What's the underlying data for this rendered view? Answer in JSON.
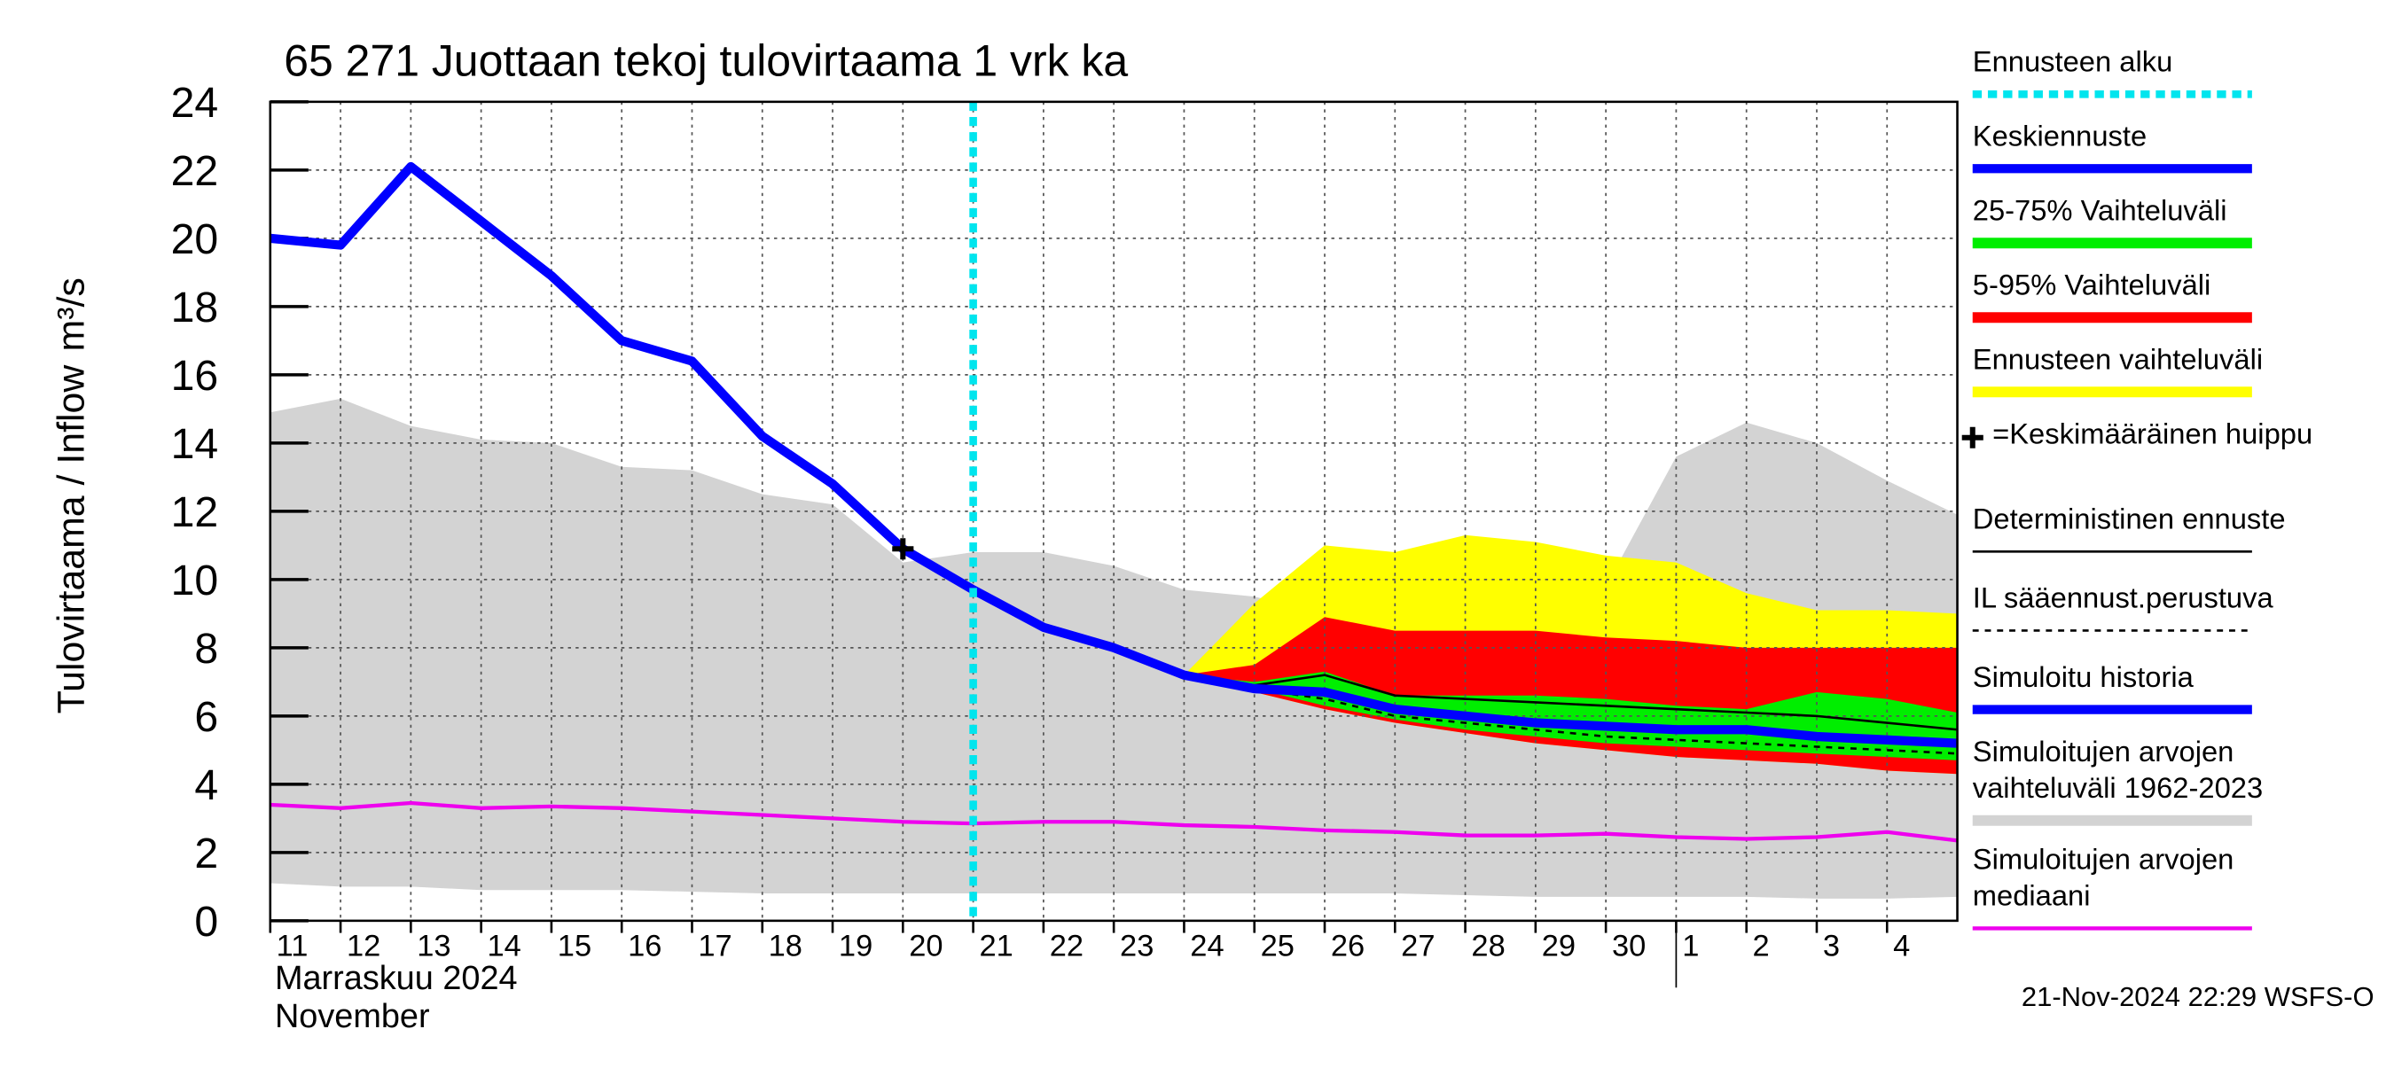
{
  "chart_data": {
    "type": "hydrograph",
    "title": "65 271 Juottaan tekoj tulovirtaama 1 vrk ka",
    "y_label": "Tulovirtaama / Inflow",
    "y_unit": "m³/s",
    "x_label": [
      "Marraskuu 2024",
      "November"
    ],
    "timestamp": "21-Nov-2024 22:29 WSFS-O",
    "xlim": [
      0,
      24
    ],
    "ylim": [
      0,
      24
    ],
    "yticks": [
      0,
      2,
      4,
      6,
      8,
      10,
      12,
      14,
      16,
      18,
      20,
      22,
      24
    ],
    "xticks": [
      {
        "value": 0,
        "label": "11"
      },
      {
        "value": 1,
        "label": "12"
      },
      {
        "value": 2,
        "label": "13"
      },
      {
        "value": 3,
        "label": "14"
      },
      {
        "value": 4,
        "label": "15"
      },
      {
        "value": 5,
        "label": "16"
      },
      {
        "value": 6,
        "label": "17"
      },
      {
        "value": 7,
        "label": "18"
      },
      {
        "value": 8,
        "label": "19"
      },
      {
        "value": 9,
        "label": "20"
      },
      {
        "value": 10,
        "label": "21"
      },
      {
        "value": 11,
        "label": "22"
      },
      {
        "value": 12,
        "label": "23"
      },
      {
        "value": 13,
        "label": "24"
      },
      {
        "value": 14,
        "label": "25"
      },
      {
        "value": 15,
        "label": "26"
      },
      {
        "value": 16,
        "label": "27"
      },
      {
        "value": 17,
        "label": "28"
      },
      {
        "value": 18,
        "label": "29"
      },
      {
        "value": 19,
        "label": "30"
      },
      {
        "value": 20,
        "label": "1"
      },
      {
        "value": 21,
        "label": "2"
      },
      {
        "value": 22,
        "label": "3"
      },
      {
        "value": 23,
        "label": "4"
      }
    ],
    "month_divider": 20,
    "grid": true,
    "x": [
      0,
      1,
      2,
      3,
      4,
      5,
      6,
      7,
      8,
      9,
      10,
      11,
      12,
      13,
      14,
      15,
      16,
      17,
      18,
      19,
      20,
      21,
      22,
      23,
      24
    ],
    "forecast_start": {
      "name": "Ennusteen alku",
      "x": 10,
      "color": "#00e5ee"
    },
    "bands": [
      {
        "name": "Simuloitujen arvojen vaihteluväli 1962-2023",
        "color": "#d3d3d3",
        "upper": [
          14.9,
          15.3,
          14.5,
          14.1,
          14.0,
          13.3,
          13.2,
          12.5,
          12.2,
          10.5,
          10.8,
          10.8,
          10.4,
          9.7,
          9.5,
          9.0,
          9.3,
          9.6,
          9.7,
          9.8,
          13.6,
          14.6,
          14.0,
          12.9,
          11.9
        ],
        "lower": [
          1.1,
          1.0,
          1.0,
          0.9,
          0.9,
          0.9,
          0.85,
          0.8,
          0.8,
          0.8,
          0.8,
          0.8,
          0.8,
          0.8,
          0.8,
          0.8,
          0.8,
          0.75,
          0.7,
          0.7,
          0.7,
          0.7,
          0.65,
          0.65,
          0.7
        ]
      },
      {
        "name": "Ennusteen vaihteluväli",
        "color": "#ffff00",
        "upper": [
          null,
          null,
          null,
          null,
          null,
          null,
          null,
          null,
          null,
          null,
          null,
          null,
          null,
          7.2,
          9.3,
          11.0,
          10.8,
          11.3,
          11.1,
          10.7,
          10.5,
          9.6,
          9.1,
          9.1,
          9.0
        ],
        "lower": [
          null,
          null,
          null,
          null,
          null,
          null,
          null,
          null,
          null,
          null,
          null,
          null,
          null,
          7.2,
          6.7,
          6.2,
          5.8,
          5.5,
          5.2,
          5.0,
          4.8,
          4.7,
          4.6,
          4.4,
          4.3
        ]
      },
      {
        "name": "5-95% Vaihteluväli",
        "color": "#ff0000",
        "upper": [
          null,
          null,
          null,
          null,
          null,
          null,
          null,
          null,
          null,
          null,
          null,
          null,
          null,
          7.2,
          7.5,
          8.9,
          8.5,
          8.5,
          8.5,
          8.3,
          8.2,
          8.0,
          8.0,
          8.0,
          8.0
        ],
        "lower": [
          null,
          null,
          null,
          null,
          null,
          null,
          null,
          null,
          null,
          null,
          null,
          null,
          null,
          7.2,
          6.7,
          6.2,
          5.8,
          5.5,
          5.2,
          5.0,
          4.8,
          4.7,
          4.6,
          4.4,
          4.3
        ]
      },
      {
        "name": "25-75% Vaihteluväli",
        "color": "#00ee00",
        "upper": [
          null,
          null,
          null,
          null,
          null,
          null,
          null,
          null,
          null,
          null,
          null,
          null,
          null,
          7.2,
          7.0,
          7.3,
          6.6,
          6.6,
          6.6,
          6.5,
          6.3,
          6.2,
          6.7,
          6.5,
          6.1
        ],
        "lower": [
          null,
          null,
          null,
          null,
          null,
          null,
          null,
          null,
          null,
          null,
          null,
          null,
          null,
          7.2,
          6.8,
          6.3,
          5.9,
          5.6,
          5.4,
          5.2,
          5.1,
          5.0,
          4.9,
          4.8,
          4.7
        ]
      }
    ],
    "series": [
      {
        "name": "Simuloitujen arvojen mediaani",
        "color": "#ee00ee",
        "width": 2.5,
        "dash": "",
        "values": [
          3.4,
          3.3,
          3.45,
          3.3,
          3.35,
          3.3,
          3.2,
          3.1,
          3.0,
          2.9,
          2.85,
          2.9,
          2.9,
          2.8,
          2.75,
          2.65,
          2.6,
          2.5,
          2.5,
          2.55,
          2.45,
          2.4,
          2.45,
          2.6,
          2.35
        ]
      },
      {
        "name": "Deterministinen ennuste",
        "color": "#000000",
        "width": 1.5,
        "dash": "",
        "values": [
          null,
          null,
          null,
          null,
          null,
          null,
          null,
          null,
          null,
          null,
          null,
          null,
          null,
          7.2,
          6.9,
          7.2,
          6.6,
          6.5,
          6.4,
          6.3,
          6.2,
          6.1,
          6.0,
          5.8,
          5.6
        ]
      },
      {
        "name": "IL sääennust.perustuva",
        "color": "#000000",
        "width": 1.5,
        "dash": "4 4",
        "values": [
          null,
          null,
          null,
          null,
          null,
          null,
          null,
          null,
          null,
          null,
          null,
          null,
          null,
          7.2,
          6.8,
          6.5,
          6.0,
          5.8,
          5.6,
          5.4,
          5.3,
          5.2,
          5.1,
          5.0,
          4.9
        ]
      },
      {
        "name": "Simuloitu historia",
        "color": "#0000ff",
        "width": 6,
        "dash": "",
        "values": [
          20.0,
          19.8,
          22.1,
          20.5,
          18.9,
          17.0,
          16.4,
          14.2,
          12.8,
          10.9,
          9.7,
          null,
          null,
          null,
          null,
          null,
          null,
          null,
          null,
          null,
          null,
          null,
          null,
          null,
          null
        ]
      },
      {
        "name": "Keskiennuste",
        "color": "#0000ff",
        "width": 6,
        "dash": "",
        "values": [
          null,
          null,
          null,
          null,
          null,
          null,
          null,
          null,
          null,
          null,
          9.7,
          8.6,
          8.0,
          7.2,
          6.8,
          6.7,
          6.2,
          6.0,
          5.8,
          5.7,
          5.6,
          5.6,
          5.4,
          5.3,
          5.2
        ]
      }
    ],
    "peak": {
      "name": "=Keskimääräinen huippu",
      "x": 9,
      "y": 10.9
    },
    "legend_order": [
      "forecast_start",
      "series.4",
      "bands.3",
      "bands.2",
      "bands.1",
      "peak",
      "series.1",
      "series.2",
      "series.3",
      "bands.0",
      "series.0"
    ]
  }
}
